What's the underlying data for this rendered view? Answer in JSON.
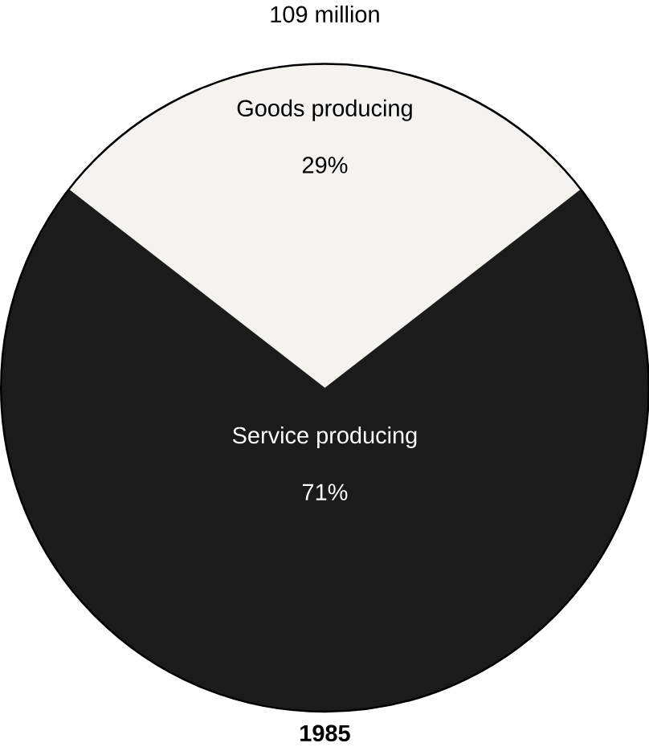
{
  "chart_data": {
    "type": "pie",
    "title": "109 million",
    "categories": [
      "Goods producing",
      "Service producing"
    ],
    "values": [
      29,
      71
    ],
    "value_labels": [
      "29%",
      "71%"
    ],
    "colors": [
      "#f4f3ef",
      "#1b1b1b"
    ],
    "annotations": [
      "1985"
    ]
  }
}
